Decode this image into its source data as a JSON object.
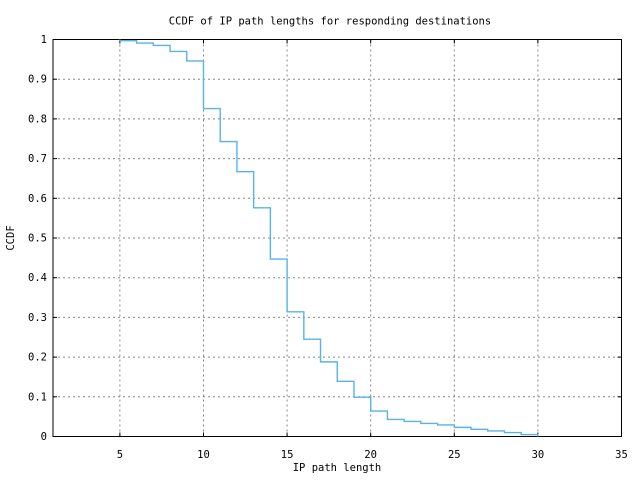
{
  "chart_data": {
    "type": "line",
    "style": "steps",
    "title": "CCDF of IP path lengths for responding destinations",
    "xlabel": "IP path length",
    "ylabel": "CCDF",
    "xlim": [
      1,
      35
    ],
    "ylim": [
      0,
      1
    ],
    "grid": "dashed",
    "legend": "none",
    "x_ticks": [
      5,
      10,
      15,
      20,
      25,
      30,
      35
    ],
    "x_tick_labels": [
      "5",
      "10",
      "15",
      "20",
      "25",
      "30",
      "35"
    ],
    "y_ticks": [
      0,
      0.1,
      0.2,
      0.3,
      0.4,
      0.5,
      0.6,
      0.7,
      0.8,
      0.9,
      1
    ],
    "y_tick_labels": [
      "0",
      "0.1",
      "0.2",
      "0.3",
      "0.4",
      "0.5",
      "0.6",
      "0.7",
      "0.8",
      "0.9",
      "1"
    ],
    "series": [
      {
        "name": "ccdf-of-ip-path-length",
        "color": "#56b4e9",
        "start_point": [
          5,
          1.0
        ],
        "steps": [
          [
            5,
            0.997
          ],
          [
            6,
            0.991
          ],
          [
            7,
            0.985
          ],
          [
            8,
            0.97
          ],
          [
            9,
            0.946
          ],
          [
            10,
            0.826
          ],
          [
            11,
            0.743
          ],
          [
            12,
            0.667
          ],
          [
            13,
            0.576
          ],
          [
            14,
            0.447
          ],
          [
            15,
            0.314
          ],
          [
            16,
            0.245
          ],
          [
            17,
            0.188
          ],
          [
            18,
            0.139
          ],
          [
            19,
            0.099
          ],
          [
            20,
            0.064
          ],
          [
            21,
            0.043
          ],
          [
            22,
            0.038
          ],
          [
            23,
            0.033
          ],
          [
            24,
            0.029
          ],
          [
            25,
            0.023
          ],
          [
            26,
            0.018
          ],
          [
            27,
            0.014
          ],
          [
            28,
            0.01
          ],
          [
            29,
            0.005
          ],
          [
            30,
            0.0
          ]
        ]
      }
    ]
  },
  "colors": {
    "background": "#ffffff",
    "frame": "#000000",
    "grid": "#888888",
    "text": "#000000",
    "line": "#56b4e9"
  }
}
